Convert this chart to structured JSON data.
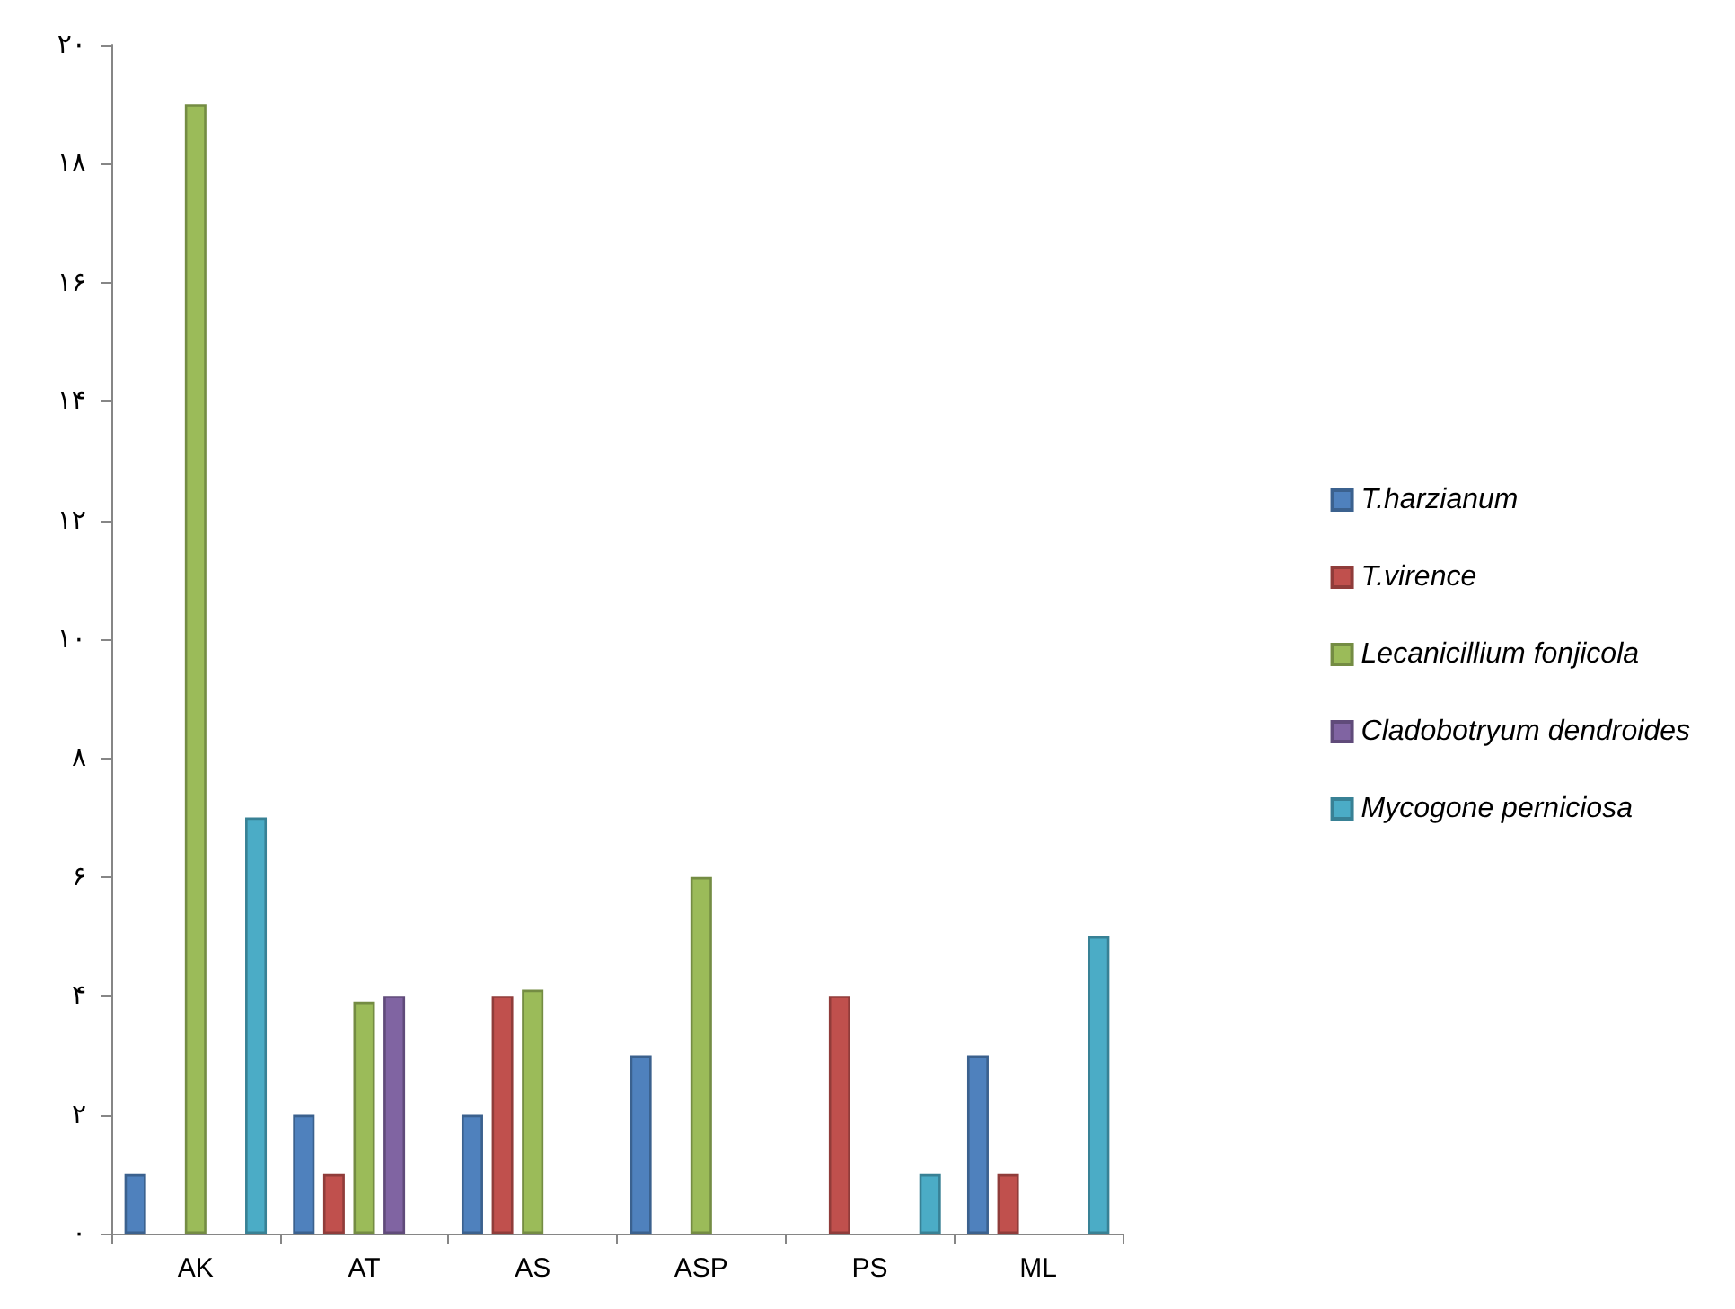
{
  "chart_data": {
    "type": "bar",
    "categories": [
      "AK",
      "AT",
      "AS",
      "ASP",
      "PS",
      "ML"
    ],
    "series": [
      {
        "name": "T.harzianum",
        "color": "#4f81bd",
        "values": [
          1,
          2,
          2,
          3,
          null,
          3
        ]
      },
      {
        "name": "T.virence",
        "color": "#c0504d",
        "values": [
          null,
          1,
          4,
          null,
          4,
          1
        ]
      },
      {
        "name": "Lecanicillium fonjicola",
        "color": "#9bbb59",
        "values": [
          19,
          3.9,
          4.1,
          6,
          null,
          null
        ]
      },
      {
        "name": "Cladobotryum dendroides",
        "color": "#8064a2",
        "values": [
          null,
          4,
          null,
          null,
          null,
          null
        ]
      },
      {
        "name": "Mycogone perniciosa",
        "color": "#4bacc6",
        "values": [
          7,
          null,
          null,
          null,
          1,
          5
        ]
      }
    ],
    "ylim": [
      0,
      20
    ],
    "yticks": [
      {
        "value": 0,
        "label": "۰"
      },
      {
        "value": 2,
        "label": "۲"
      },
      {
        "value": 4,
        "label": "۴"
      },
      {
        "value": 6,
        "label": "۶"
      },
      {
        "value": 8,
        "label": "۸"
      },
      {
        "value": 10,
        "label": "۱۰"
      },
      {
        "value": 12,
        "label": "۱۲"
      },
      {
        "value": 14,
        "label": "۱۴"
      },
      {
        "value": 16,
        "label": "۱۶"
      },
      {
        "value": 18,
        "label": "۱۸"
      },
      {
        "value": 20,
        "label": "۲۰"
      }
    ],
    "grid": false,
    "legend": "right"
  }
}
